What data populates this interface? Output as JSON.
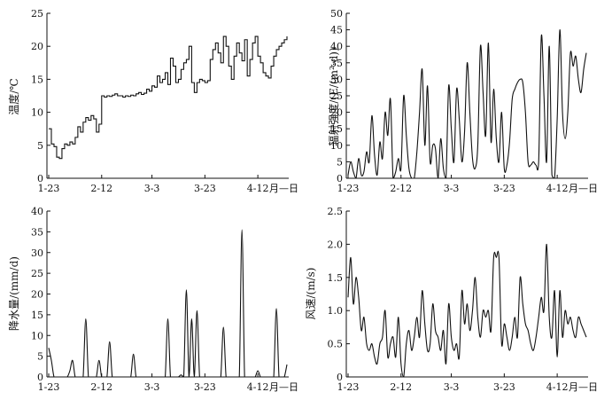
{
  "chart_data": [
    {
      "type": "line",
      "panel": "temperature",
      "ylabel": "温度/℃",
      "xunit": "月—日",
      "xticks": [
        "1-23",
        "2-12",
        "3-3",
        "3-23",
        "4-12"
      ],
      "ylim": [
        0,
        25
      ],
      "yticks": [
        "0",
        "5",
        "10",
        "15",
        "20",
        "25"
      ],
      "x_days": [
        0,
        1,
        2,
        3,
        4,
        5,
        6,
        7,
        8,
        9,
        10,
        11,
        12,
        13,
        14,
        15,
        16,
        17,
        18,
        19,
        20,
        21,
        22,
        23,
        24,
        25,
        26,
        27,
        28,
        29,
        30,
        31,
        32,
        33,
        34,
        35,
        36,
        37,
        38,
        39,
        40,
        41,
        42,
        43,
        44,
        45,
        46,
        47,
        48,
        49,
        50,
        51,
        52,
        53,
        54,
        55,
        56,
        57,
        58,
        59,
        60,
        61,
        62,
        63,
        64,
        65,
        66,
        67,
        68,
        69,
        70,
        71,
        72,
        73,
        74,
        75,
        76,
        77,
        78,
        79,
        80,
        81,
        82,
        83,
        84,
        85,
        86,
        87,
        88,
        89,
        90
      ],
      "values": [
        7.5,
        5.2,
        4.8,
        3.2,
        3.0,
        4.5,
        5.2,
        5.0,
        5.5,
        5.2,
        6.2,
        7.8,
        7.0,
        8.5,
        9.2,
        8.8,
        9.5,
        9.0,
        7.0,
        8.2,
        12.5,
        12.3,
        12.5,
        12.4,
        12.6,
        12.8,
        12.5,
        12.5,
        12.3,
        12.5,
        12.4,
        12.6,
        12.5,
        12.8,
        13.0,
        12.7,
        12.9,
        13.5,
        13.2,
        14.0,
        13.8,
        15.5,
        14.5,
        15.0,
        16.0,
        14.2,
        18.2,
        17.0,
        14.5,
        15.0,
        16.5,
        17.5,
        18.0,
        20.0,
        14.5,
        13.0,
        14.5,
        15.0,
        14.8,
        14.5,
        14.8,
        18.0,
        19.5,
        20.5,
        19.0,
        17.5,
        21.5,
        20.0,
        17.0,
        15.0,
        18.5,
        20.5,
        19.0,
        17.8,
        21.0,
        15.5,
        18.0,
        20.5,
        21.5,
        18.5,
        17.5,
        16.0,
        15.5,
        15.2,
        17.0,
        18.5,
        19.5,
        20.0,
        20.5,
        21.0,
        21.5
      ]
    },
    {
      "type": "line",
      "panel": "radiation",
      "ylabel": "辐射强度/(E/(m²·d))",
      "xunit": "月—日",
      "xticks": [
        "1-23",
        "2-12",
        "3-3",
        "3-23",
        "4-12"
      ],
      "ylim": [
        0,
        50
      ],
      "yticks": [
        "0",
        "5",
        "10",
        "15",
        "20",
        "25",
        "30",
        "35",
        "40",
        "45",
        "50"
      ],
      "x_days": [
        0,
        1,
        2,
        3,
        4,
        5,
        6,
        7,
        8,
        9,
        10,
        11,
        12,
        13,
        14,
        15,
        16,
        17,
        18,
        19,
        20,
        21,
        22,
        23,
        24,
        25,
        26,
        27,
        28,
        29,
        30,
        31,
        32,
        33,
        34,
        35,
        36,
        37,
        38,
        39,
        40,
        41,
        42,
        43,
        44,
        45,
        46,
        47,
        48,
        49,
        50,
        51,
        52,
        53,
        54,
        55,
        56,
        57,
        58,
        59,
        60,
        61,
        62,
        63,
        64,
        65,
        66,
        67,
        68,
        69,
        70,
        71,
        72,
        73,
        74,
        75,
        76,
        77,
        78,
        79,
        80,
        81,
        82,
        83,
        84,
        85,
        86,
        87,
        88,
        89,
        90
      ],
      "values": [
        1,
        5,
        2,
        0,
        6,
        1,
        2,
        8,
        5,
        19,
        7,
        1,
        11,
        6,
        20,
        13,
        24,
        0,
        2,
        6,
        3,
        25,
        13,
        3,
        0,
        0,
        8,
        20,
        33,
        10,
        28,
        5,
        10,
        9,
        0,
        12,
        3,
        0,
        28,
        15,
        5,
        27,
        18,
        5,
        14,
        35,
        20,
        6,
        3,
        10,
        40,
        26,
        13,
        41,
        11,
        27,
        12,
        5,
        20,
        3,
        4,
        11,
        24,
        27,
        29,
        30,
        29,
        20,
        5,
        4,
        5,
        4,
        5,
        43,
        25,
        5,
        40,
        1,
        0,
        18,
        45,
        20,
        12,
        20,
        38,
        34,
        37,
        30,
        26,
        33,
        38
      ]
    },
    {
      "type": "line",
      "panel": "precipitation",
      "ylabel": "降水量/(mm/d)",
      "xunit": "月—日",
      "xticks": [
        "1-23",
        "2-12",
        "3-3",
        "3-23",
        "4-12"
      ],
      "ylim": [
        0,
        40
      ],
      "yticks": [
        "0",
        "5",
        "10",
        "15",
        "20",
        "25",
        "30",
        "35",
        "40"
      ],
      "x_days": [
        0,
        1,
        2,
        3,
        4,
        5,
        6,
        7,
        8,
        9,
        10,
        11,
        12,
        13,
        14,
        15,
        16,
        17,
        18,
        19,
        20,
        21,
        22,
        23,
        24,
        25,
        26,
        27,
        28,
        29,
        30,
        31,
        32,
        33,
        34,
        35,
        36,
        37,
        38,
        39,
        40,
        41,
        42,
        43,
        44,
        45,
        46,
        47,
        48,
        49,
        50,
        51,
        52,
        53,
        54,
        55,
        56,
        57,
        58,
        59,
        60,
        61,
        62,
        63,
        64,
        65,
        66,
        67,
        68,
        69,
        70,
        71,
        72,
        73,
        74,
        75,
        76,
        77,
        78,
        79,
        80,
        81,
        82,
        83,
        84,
        85,
        86,
        87,
        88,
        89,
        90
      ],
      "values": [
        7,
        4,
        0,
        0,
        0,
        0,
        0,
        0,
        1.5,
        4,
        0,
        0,
        0,
        0,
        14,
        0,
        0,
        0,
        0,
        4,
        0,
        0,
        0,
        8.5,
        0,
        0,
        0,
        0,
        0,
        0,
        0,
        0,
        5.5,
        0,
        0,
        0,
        0,
        0,
        0,
        0,
        0,
        0,
        0,
        0,
        0,
        14,
        0,
        0,
        0,
        0,
        0.5,
        0,
        21,
        0,
        14,
        0,
        16,
        0,
        0,
        0,
        0,
        0,
        0,
        0,
        0,
        0,
        12,
        0,
        0,
        0,
        0,
        0,
        0,
        35.5,
        0,
        0,
        0,
        0,
        0,
        1.5,
        0,
        0,
        0,
        0,
        0,
        0,
        16.5,
        0,
        0,
        0,
        3
      ]
    },
    {
      "type": "line",
      "panel": "wind",
      "ylabel": "风速/(m/s)",
      "xunit": "月—日",
      "xticks": [
        "1-23",
        "2-12",
        "3-3",
        "3-23",
        "4-12"
      ],
      "ylim": [
        0,
        2.5
      ],
      "yticks": [
        "0",
        "0.5",
        "1.0",
        "1.5",
        "2.0",
        "2.5"
      ],
      "x_days": [
        0,
        1,
        2,
        3,
        4,
        5,
        6,
        7,
        8,
        9,
        10,
        11,
        12,
        13,
        14,
        15,
        16,
        17,
        18,
        19,
        20,
        21,
        22,
        23,
        24,
        25,
        26,
        27,
        28,
        29,
        30,
        31,
        32,
        33,
        34,
        35,
        36,
        37,
        38,
        39,
        40,
        41,
        42,
        43,
        44,
        45,
        46,
        47,
        48,
        49,
        50,
        51,
        52,
        53,
        54,
        55,
        56,
        57,
        58,
        59,
        60,
        61,
        62,
        63,
        64,
        65,
        66,
        67,
        68,
        69,
        70,
        71,
        72,
        73,
        74,
        75,
        76,
        77,
        78,
        79,
        80,
        81,
        82,
        83,
        84,
        85,
        86,
        87,
        88,
        89,
        90
      ],
      "values": [
        1.2,
        1.8,
        1.1,
        1.5,
        1.2,
        0.7,
        0.9,
        0.5,
        0.4,
        0.5,
        0.3,
        0.2,
        0.5,
        0.6,
        1.0,
        0.3,
        0.5,
        0.6,
        0.3,
        0.9,
        0.2,
        0.0,
        0.5,
        0.7,
        0.4,
        0.6,
        0.9,
        0.6,
        1.3,
        0.8,
        0.4,
        0.5,
        1.1,
        0.7,
        0.6,
        0.4,
        0.7,
        0.2,
        1.1,
        0.6,
        0.4,
        0.5,
        0.3,
        1.3,
        0.8,
        1.1,
        0.7,
        1.0,
        1.5,
        0.9,
        0.6,
        1.0,
        0.9,
        1.0,
        0.7,
        1.8,
        1.8,
        1.8,
        0.5,
        0.8,
        0.6,
        0.4,
        0.6,
        0.9,
        0.6,
        1.5,
        1.1,
        0.8,
        0.7,
        0.5,
        0.4,
        0.6,
        0.9,
        1.2,
        1.0,
        2.0,
        0.9,
        0.6,
        1.3,
        0.3,
        1.3,
        0.6,
        1.0,
        0.8,
        0.9,
        0.7,
        0.6,
        0.9,
        0.8,
        0.7,
        0.6
      ]
    }
  ]
}
